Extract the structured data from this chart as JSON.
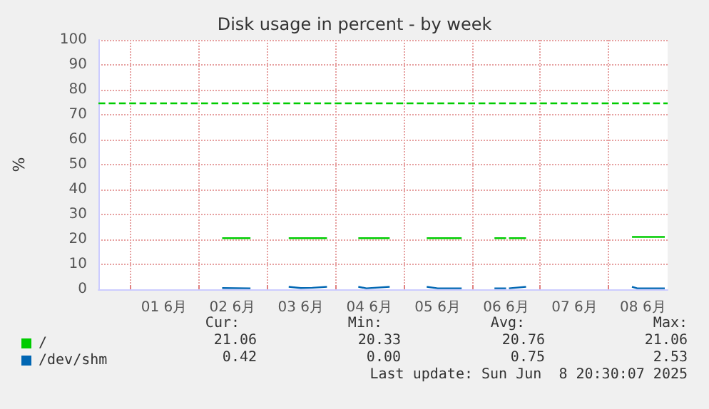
{
  "chart_data": {
    "type": "line",
    "title": "Disk usage in percent - by week",
    "ylabel": "%",
    "x": [
      "2025-06-02T08:24",
      "2025-06-02T18:20",
      "2025-06-03T00:00",
      "2025-06-03T07:45",
      "2025-06-03T12:00",
      "2025-06-03T16:00",
      "2025-06-03T21:10",
      "2025-06-04T00:00",
      "2025-06-04T08:10",
      "2025-06-04T11:00",
      "2025-06-04T19:10",
      "2025-06-05T00:00",
      "2025-06-05T08:10",
      "2025-06-05T12:00",
      "2025-06-05T20:25",
      "2025-06-06T00:00",
      "2025-06-06T07:55",
      "2025-06-06T12:00",
      "2025-06-06T12:30",
      "2025-06-06T13:00",
      "2025-06-06T19:00",
      "2025-06-07T00:00",
      "2025-06-08T08:10",
      "2025-06-08T10:00",
      "2025-06-08T19:40"
    ],
    "series": [
      {
        "name": "/",
        "color": "#00cc00",
        "values": [
          20.5,
          20.5,
          null,
          20.5,
          20.5,
          20.5,
          20.5,
          null,
          20.5,
          20.5,
          20.5,
          null,
          20.5,
          20.5,
          20.5,
          null,
          20.5,
          20.5,
          null,
          20.5,
          20.5,
          null,
          21,
          21,
          21
        ]
      },
      {
        "name": "/dev/shm",
        "color": "#0066b3",
        "values": [
          0.5,
          0.4,
          null,
          1.0,
          0.5,
          0.6,
          1.0,
          null,
          1.0,
          0.4,
          1.0,
          null,
          1.0,
          0.4,
          0.4,
          null,
          0.4,
          0.4,
          null,
          0.4,
          1.0,
          null,
          1.0,
          0.4,
          0.4
        ]
      }
    ],
    "xlim": [
      "2025-05-31T13:00",
      "2025-06-08T20:40"
    ],
    "xticks": [
      {
        "value": "2025-06-01T00:00",
        "label": null
      },
      {
        "value": "2025-06-01T12:00",
        "label": "01 6月"
      },
      {
        "value": "2025-06-02T00:00",
        "label": null
      },
      {
        "value": "2025-06-02T12:00",
        "label": "02 6月"
      },
      {
        "value": "2025-06-03T00:00",
        "label": null
      },
      {
        "value": "2025-06-03T12:00",
        "label": "03 6月"
      },
      {
        "value": "2025-06-04T00:00",
        "label": null
      },
      {
        "value": "2025-06-04T12:00",
        "label": "04 6月"
      },
      {
        "value": "2025-06-05T00:00",
        "label": null
      },
      {
        "value": "2025-06-05T12:00",
        "label": "05 6月"
      },
      {
        "value": "2025-06-06T00:00",
        "label": null
      },
      {
        "value": "2025-06-06T12:00",
        "label": "06 6月"
      },
      {
        "value": "2025-06-07T00:00",
        "label": null
      },
      {
        "value": "2025-06-07T12:00",
        "label": "07 6月"
      },
      {
        "value": "2025-06-08T00:00",
        "label": null
      },
      {
        "value": "2025-06-08T12:00",
        "label": "08 6月"
      }
    ],
    "ylim": [
      0,
      100
    ],
    "yticks": [
      0,
      10,
      20,
      30,
      40,
      50,
      60,
      70,
      80,
      90,
      100
    ],
    "grid": true,
    "legend": "bottom left",
    "marker": "none",
    "line_style": "solid",
    "ref_lines": [
      {
        "axis": "y",
        "value": 75,
        "color": "#00cc00",
        "line_style": "dashed"
      }
    ],
    "annotations": [
      "Cur:",
      "Min:",
      "Avg:",
      "Max:",
      "21.06",
      "20.33",
      "20.76",
      "21.06",
      "0.42",
      "0.00",
      "0.75",
      "2.53",
      "Last update: Sun Jun  8 20:30:07 2025"
    ]
  }
}
